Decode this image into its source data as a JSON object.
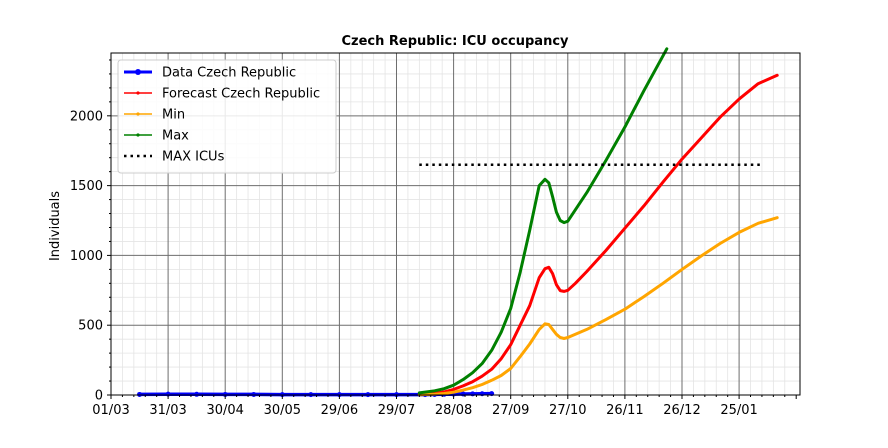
{
  "chart_data": {
    "type": "line",
    "title": "Czech Republic: ICU occupancy",
    "xlabel": "",
    "ylabel": "Individuals",
    "x_tick_labels": [
      "01/03",
      "31/03",
      "30/04",
      "30/05",
      "29/06",
      "29/07",
      "28/08",
      "27/09",
      "27/10",
      "26/11",
      "26/12",
      "25/01"
    ],
    "y_tick_labels": [
      "0",
      "500",
      "1000",
      "1500",
      "2000"
    ],
    "xlim_days": [
      0,
      362
    ],
    "ylim": [
      0,
      2450
    ],
    "grid": true,
    "legend_position": "upper left",
    "series": [
      {
        "name": "Data Czech Republic",
        "color": "#0000ff",
        "marker": "dot",
        "x_days": [
          15,
          30,
          45,
          60,
          75,
          90,
          105,
          120,
          135,
          150,
          165,
          170,
          175,
          180,
          185,
          190,
          195,
          200
        ],
        "values": [
          4,
          6,
          5,
          4,
          4,
          3,
          3,
          3,
          3,
          3,
          3,
          4,
          5,
          6,
          7,
          8,
          9,
          10
        ]
      },
      {
        "name": "Forecast Czech Republic",
        "color": "#ff0000",
        "marker": "small-dot",
        "x_days": [
          162,
          170,
          175,
          180,
          185,
          190,
          195,
          200,
          205,
          210,
          215,
          220,
          225,
          228,
          230,
          232,
          233,
          234,
          236,
          238,
          240,
          244,
          250,
          260,
          270,
          280,
          290,
          300,
          310,
          320,
          330,
          340,
          350
        ],
        "values": [
          5,
          12,
          22,
          40,
          65,
          95,
          135,
          185,
          260,
          360,
          500,
          640,
          840,
          905,
          915,
          870,
          830,
          790,
          748,
          742,
          750,
          800,
          885,
          1035,
          1195,
          1355,
          1525,
          1690,
          1840,
          1990,
          2120,
          2230,
          2290
        ]
      },
      {
        "name": "Min",
        "color": "#ffa500",
        "marker": "small-dot",
        "x_days": [
          162,
          170,
          175,
          180,
          185,
          190,
          195,
          200,
          205,
          210,
          215,
          220,
          225,
          228,
          230,
          232,
          234,
          236,
          238,
          240,
          250,
          260,
          270,
          280,
          290,
          300,
          310,
          320,
          330,
          340,
          350
        ],
        "values": [
          2,
          6,
          11,
          20,
          35,
          52,
          75,
          105,
          140,
          190,
          275,
          365,
          470,
          510,
          505,
          470,
          435,
          412,
          405,
          412,
          470,
          540,
          615,
          705,
          800,
          900,
          995,
          1085,
          1165,
          1230,
          1270
        ]
      },
      {
        "name": "Max",
        "color": "#008000",
        "marker": "small-dot",
        "x_days": [
          162,
          170,
          175,
          180,
          185,
          190,
          195,
          200,
          205,
          210,
          215,
          220,
          225,
          228,
          230,
          232,
          234,
          236,
          238,
          240,
          250,
          260,
          270,
          280,
          290,
          292
        ],
        "values": [
          15,
          30,
          45,
          70,
          110,
          160,
          225,
          320,
          450,
          620,
          880,
          1180,
          1500,
          1545,
          1520,
          1420,
          1310,
          1250,
          1235,
          1245,
          1450,
          1680,
          1920,
          2180,
          2430,
          2480
        ]
      },
      {
        "name": "MAX ICUs",
        "color": "#000000",
        "marker": "none",
        "linestyle": "dotted",
        "x_days": [
          162,
          342
        ],
        "values": [
          1650,
          1650
        ]
      }
    ]
  }
}
